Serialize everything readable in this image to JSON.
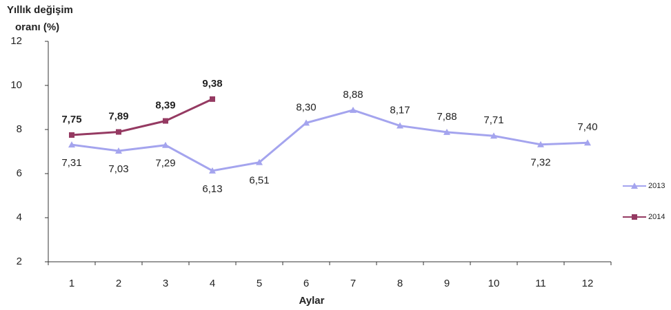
{
  "chart_data": {
    "type": "line",
    "ylabel": [
      "Yıllık değişim",
      "oranı (%)"
    ],
    "xlabel": "Aylar",
    "categories": [
      "1",
      "2",
      "3",
      "4",
      "5",
      "6",
      "7",
      "8",
      "9",
      "10",
      "11",
      "12"
    ],
    "series": [
      {
        "name": "2013",
        "color": "#a4a4ee",
        "marker": "triangle",
        "values": [
          7.31,
          7.03,
          7.29,
          6.13,
          6.51,
          8.3,
          8.88,
          8.17,
          7.88,
          7.71,
          7.32,
          7.4
        ],
        "value_labels": [
          "7,31",
          "7,03",
          "7,29",
          "6,13",
          "6,51",
          "8,30",
          "8,88",
          "8,17",
          "7,88",
          "7,71",
          "7,32",
          "7,40"
        ]
      },
      {
        "name": "2014",
        "color": "#953a62",
        "marker": "square",
        "values": [
          7.75,
          7.89,
          8.39,
          9.38,
          null,
          null,
          null,
          null,
          null,
          null,
          null,
          null
        ],
        "value_labels": [
          "7,75",
          "7,89",
          "8,39",
          "9,38",
          null,
          null,
          null,
          null,
          null,
          null,
          null,
          null
        ]
      }
    ],
    "ylim": [
      2,
      12
    ],
    "yticks": [
      2,
      4,
      6,
      8,
      10,
      12
    ],
    "grid": false,
    "legend": "right"
  }
}
